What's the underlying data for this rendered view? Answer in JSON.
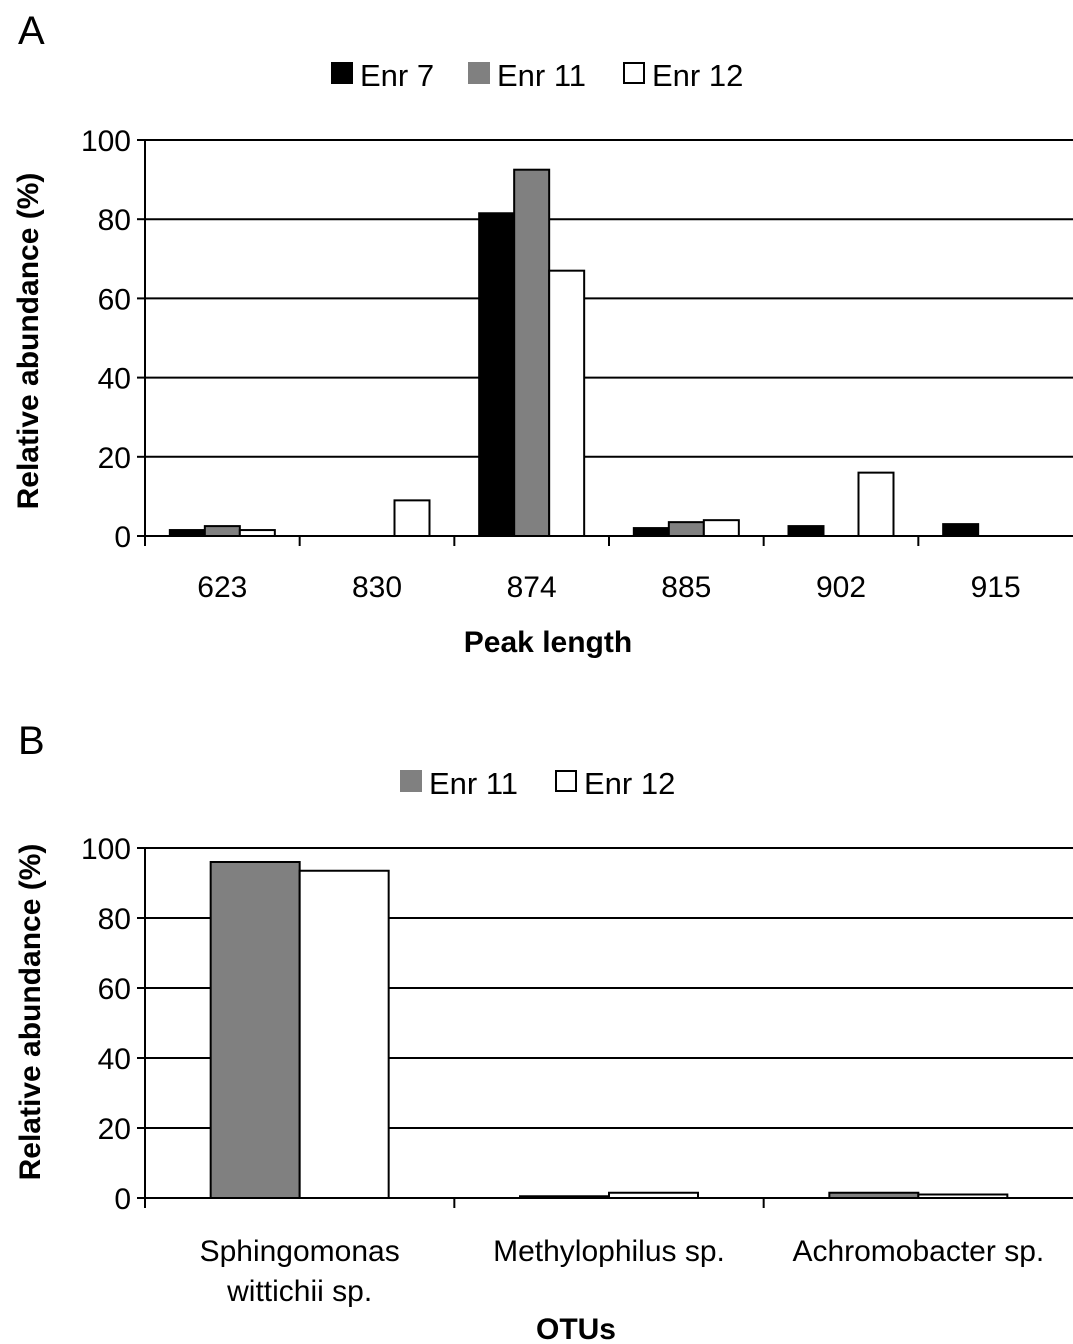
{
  "chart_data": [
    {
      "panel": "A",
      "type": "bar",
      "title": "",
      "xlabel": "Peak length",
      "ylabel": "Relative abundance (%)",
      "ylim": [
        0,
        100
      ],
      "yticks": [
        0,
        20,
        40,
        60,
        80,
        100
      ],
      "grid": true,
      "legend": "top-center",
      "categories": [
        "623",
        "830",
        "874",
        "885",
        "902",
        "915"
      ],
      "series": [
        {
          "name": "Enr 7",
          "color": "#000000",
          "values": [
            1.5,
            0,
            81.5,
            2.0,
            2.5,
            3.0
          ]
        },
        {
          "name": "Enr 11",
          "color": "#808080",
          "values": [
            2.5,
            0,
            92.5,
            3.5,
            0,
            0
          ]
        },
        {
          "name": "Enr 12",
          "color": "#ffffff",
          "values": [
            1.5,
            9.0,
            67.0,
            4.0,
            16.0,
            0
          ]
        }
      ]
    },
    {
      "panel": "B",
      "type": "bar",
      "title": "",
      "xlabel": "OTUs",
      "ylabel": "Relative abundance (%)",
      "ylim": [
        0,
        100
      ],
      "yticks": [
        0,
        20,
        40,
        60,
        80,
        100
      ],
      "grid": true,
      "legend": "top-center",
      "categories": [
        [
          "Sphingomonas",
          "wittichii sp."
        ],
        [
          "Methylophilus sp."
        ],
        [
          "Achromobacter sp."
        ]
      ],
      "series": [
        {
          "name": "Enr 11",
          "color": "#808080",
          "values": [
            96.0,
            0.5,
            1.5
          ]
        },
        {
          "name": "Enr 12",
          "color": "#ffffff",
          "values": [
            93.5,
            1.5,
            1.0
          ]
        }
      ]
    }
  ]
}
